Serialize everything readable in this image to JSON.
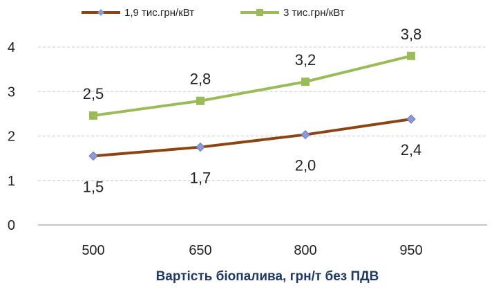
{
  "chart_data": {
    "type": "line",
    "title": "",
    "xlabel": "Вартість біопалива, грн/т без ПДВ",
    "ylabel": "",
    "categories": [
      "500",
      "650",
      "800",
      "950"
    ],
    "ylim": [
      0,
      4
    ],
    "yticks": [
      "0",
      "1",
      "2",
      "3",
      "4"
    ],
    "grid": true,
    "legend_position": "top",
    "series": [
      {
        "name": "1,9 тис.грн/кВт",
        "values": [
          1.55,
          1.75,
          2.03,
          2.38
        ],
        "labels": [
          "1,5",
          "1,7",
          "2,0",
          "2,4"
        ],
        "label_position": "below",
        "line_color": "#8b4513",
        "marker": "diamond",
        "marker_color": "#8e9ad8"
      },
      {
        "name": "3 тис.грн/кВт",
        "values": [
          2.46,
          2.79,
          3.22,
          3.8
        ],
        "labels": [
          "2,5",
          "2,8",
          "3,2",
          "3,8"
        ],
        "label_position": "above",
        "line_color": "#9bbb59",
        "marker": "square",
        "marker_color": "#9bbb59"
      }
    ]
  }
}
